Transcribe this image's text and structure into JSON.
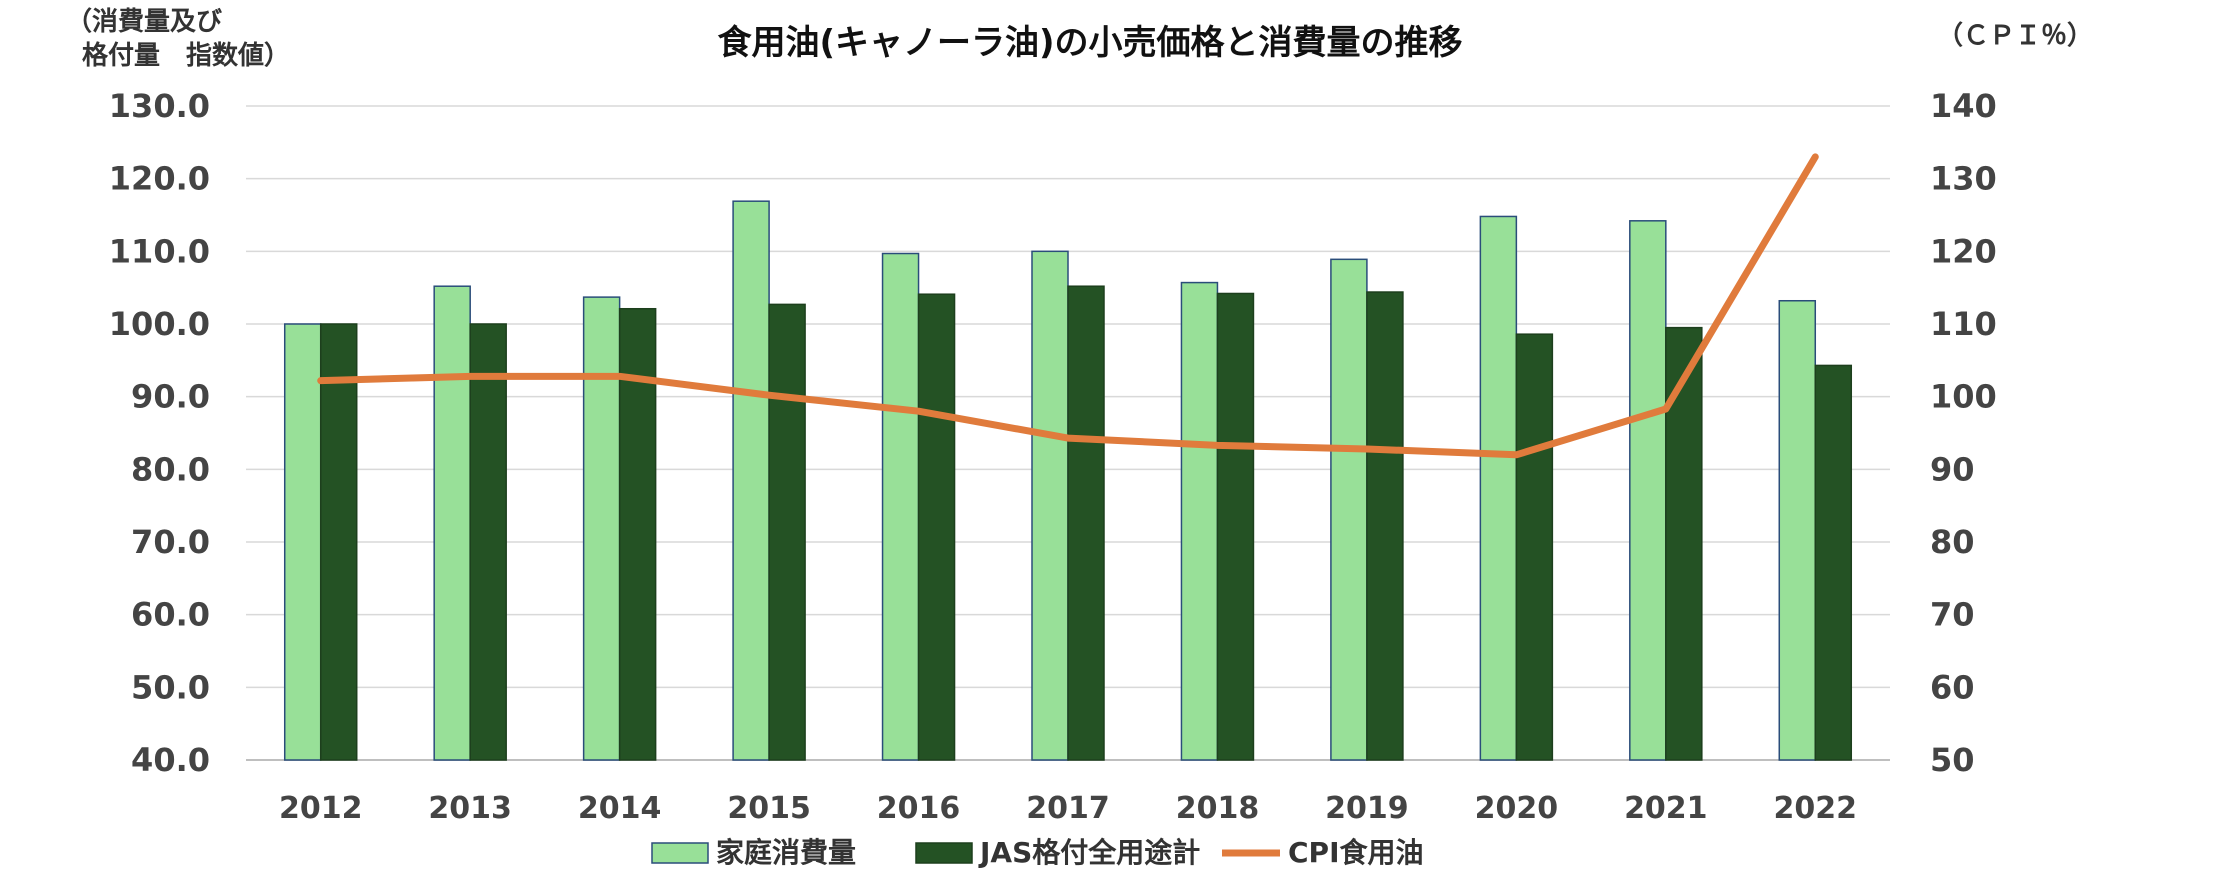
{
  "chart_data": {
    "type": "bar",
    "title": "食用油(キャノーラ油)の小売価格と消費量の推移",
    "ylabel_left": [
      "（消費量及び",
      "格付量　指数値）"
    ],
    "ylabel_right": "（ＣＰＩ％）",
    "categories": [
      "2012",
      "2013",
      "2014",
      "2015",
      "2016",
      "2017",
      "2018",
      "2019",
      "2020",
      "2021",
      "2022"
    ],
    "left_axis": {
      "ylim": [
        40,
        130
      ],
      "ticks": [
        "40.0",
        "50.0",
        "60.0",
        "70.0",
        "80.0",
        "90.0",
        "100.0",
        "110.0",
        "120.0",
        "130.0"
      ]
    },
    "right_axis": {
      "ylim": [
        50,
        140
      ],
      "ticks": [
        "50",
        "60",
        "70",
        "80",
        "90",
        "100",
        "110",
        "120",
        "130",
        "140"
      ]
    },
    "grid": true,
    "legend_position": "bottom",
    "series": [
      {
        "name": "家庭消費量",
        "type": "bar",
        "axis": "left",
        "color": "#98e098",
        "edge": "#2a4d7a",
        "values": [
          100.0,
          105.2,
          103.7,
          116.9,
          109.7,
          110.0,
          105.7,
          108.9,
          114.8,
          114.2,
          103.2
        ]
      },
      {
        "name": "JAS格付全用途計",
        "type": "bar",
        "axis": "left",
        "color": "#245224",
        "edge": "#1d3f1d",
        "values": [
          100.0,
          100.0,
          102.1,
          102.7,
          104.1,
          105.2,
          104.2,
          104.4,
          98.6,
          99.5,
          94.3
        ]
      },
      {
        "name": "CPI食用油",
        "type": "line",
        "axis": "right",
        "color": "#e07b3c",
        "values": [
          102.2,
          102.8,
          102.8,
          100.2,
          98.0,
          94.3,
          93.3,
          92.8,
          92.0,
          98.3,
          133.0
        ]
      }
    ]
  }
}
